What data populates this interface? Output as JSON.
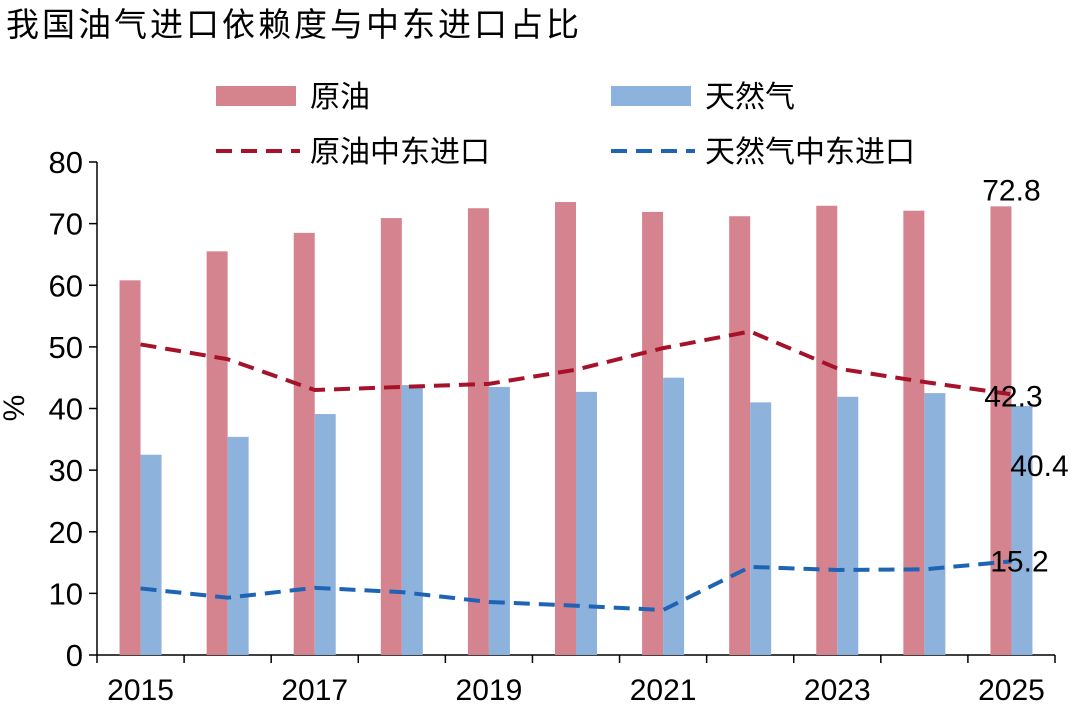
{
  "chart_data": {
    "type": "bar",
    "title": "我国油气进口依赖度与中东进口占比",
    "ylabel": "%",
    "xlabel": "",
    "ylim": [
      0,
      80
    ],
    "yticks": [
      0,
      10,
      20,
      30,
      40,
      50,
      60,
      70,
      80
    ],
    "x": [
      2015,
      2016,
      2017,
      2018,
      2019,
      2020,
      2021,
      2022,
      2023,
      2024,
      2025
    ],
    "xtick_labels": [
      "2015",
      "2017",
      "2019",
      "2021",
      "2023",
      "2025"
    ],
    "legend_position": "top",
    "series": [
      {
        "name": "原油",
        "kind": "bar",
        "color": "#d5838e",
        "values": [
          60.8,
          65.5,
          68.5,
          70.9,
          72.5,
          73.5,
          71.9,
          71.2,
          72.9,
          72.1,
          72.8
        ]
      },
      {
        "name": "天然气",
        "kind": "bar",
        "color": "#8db3dc",
        "values": [
          32.5,
          35.4,
          39.1,
          43.8,
          43.5,
          42.7,
          45.0,
          41.0,
          41.9,
          42.5,
          40.4
        ]
      },
      {
        "name": "原油中东进口",
        "kind": "line",
        "dash": true,
        "color": "#a5122a",
        "values": [
          50.4,
          48.0,
          43.0,
          43.5,
          44.0,
          46.3,
          49.8,
          52.5,
          46.5,
          44.3,
          42.3
        ]
      },
      {
        "name": "天然气中东进口",
        "kind": "line",
        "dash": true,
        "color": "#1f63b5",
        "values": [
          10.8,
          9.3,
          10.9,
          10.2,
          8.6,
          8.0,
          7.3,
          14.3,
          13.8,
          13.9,
          15.2
        ]
      }
    ],
    "data_labels": [
      {
        "series": "原油",
        "x": 2025,
        "text": "72.8"
      },
      {
        "series": "原油中东进口",
        "x": 2025,
        "text": "42.3"
      },
      {
        "series": "天然气",
        "x": 2025,
        "text": "40.4"
      },
      {
        "series": "天然气中东进口",
        "x": 2025,
        "text": "15.2"
      }
    ]
  }
}
